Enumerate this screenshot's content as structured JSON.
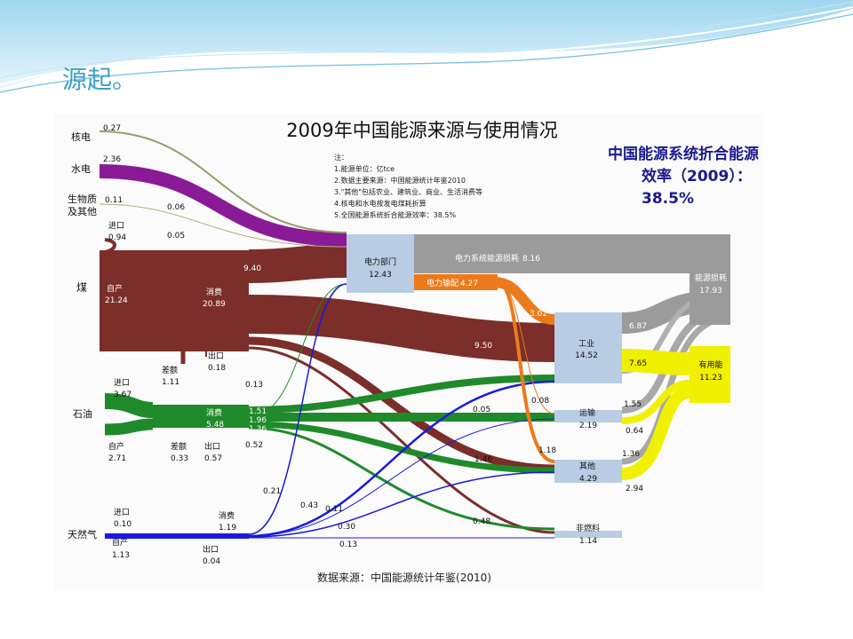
{
  "slide": {
    "title": "源起。"
  },
  "diagram": {
    "title": "2009年中国能源来源与使用情况",
    "source": "数据来源：中国能源统计年鉴(2010)",
    "notes": [
      "注：",
      "1.能源单位：亿tce",
      "2.数据主要来源：中国能源统计年鉴2010",
      "3.\"其他\"包括农业、建筑业、商业、生活消费等",
      "4.核电和水电按发电煤耗折算",
      "5.全国能源系统折合能源效率：38.5%"
    ]
  },
  "callout": {
    "line1": "中国能源系统折合能源",
    "line2": "效率（2009）：",
    "line3": "38.5%"
  },
  "colors": {
    "coal": "#7b2e2a",
    "oil": "#1f8a2a",
    "gas": "#1a1adc",
    "hydro": "#8a1a96",
    "electric": "#eb7a1c",
    "loss": "#9b9b9b",
    "useful": "#f0f000",
    "node": "#b8cce4"
  },
  "sources": [
    {
      "key": "nuclear",
      "label": "核电",
      "value": "0.27"
    },
    {
      "key": "hydro",
      "label": "水电",
      "value": "2.36"
    },
    {
      "key": "bio",
      "label": "生物质",
      "label2": "及其他",
      "value": "0.11"
    },
    {
      "key": "coal",
      "label": "煤"
    },
    {
      "key": "oil",
      "label": "石油"
    },
    {
      "key": "gas",
      "label": "天然气"
    }
  ],
  "nodes": {
    "power": {
      "label": "电力部门",
      "value": "12.43"
    },
    "industry": {
      "label": "工业",
      "value": "14.52"
    },
    "transport": {
      "label": "运输",
      "value": "2.19"
    },
    "other": {
      "label": "其他",
      "value": "4.29"
    },
    "nonfuel": {
      "label": "非燃料",
      "value": "1.14"
    },
    "energy_loss": {
      "label": "能源损耗",
      "value": "17.93"
    },
    "useful": {
      "label": "有用能",
      "value": "11.23"
    },
    "power_loss": {
      "label": "电力系统能源损耗",
      "value": "8.16"
    },
    "power_out": {
      "label": "电力输配",
      "value": "4.27"
    }
  },
  "coal": {
    "import_label": "进口",
    "import_value": "0.94",
    "own_label": "自产",
    "own_value": "21.24",
    "consume_label": "消费",
    "consume_value": "20.89",
    "diff_label": "差额",
    "diff_value": "1.11",
    "export_label": "出口",
    "export_value": "0.18"
  },
  "oil": {
    "import_label": "进口",
    "import_value": "3.67",
    "own_label": "自产",
    "own_value": "2.71",
    "consume_label": "消费",
    "consume_value": "5.48",
    "diff_label": "差额",
    "diff_value": "0.33",
    "export_label": "出口",
    "export_value": "0.57"
  },
  "gas": {
    "import_label": "进口",
    "import_value": "0.10",
    "own_label": "自产",
    "own_value": "1.13",
    "consume_label": "消费",
    "consume_value": "1.19",
    "export_label": "出口",
    "export_value": "0.04"
  },
  "flow_labels": [
    "0.06",
    "0.05",
    "9.40",
    "0.13",
    "1.51",
    "1.96",
    "1.36",
    "0.52",
    "0.21",
    "0.43",
    "0.11",
    "0.30",
    "0.13",
    "0.48",
    "1.46",
    "0.05",
    "0.08",
    "1.18",
    "9.50",
    "3.02",
    "6.87",
    "7.65",
    "1.55",
    "0.64",
    "1.36",
    "2.94"
  ]
}
